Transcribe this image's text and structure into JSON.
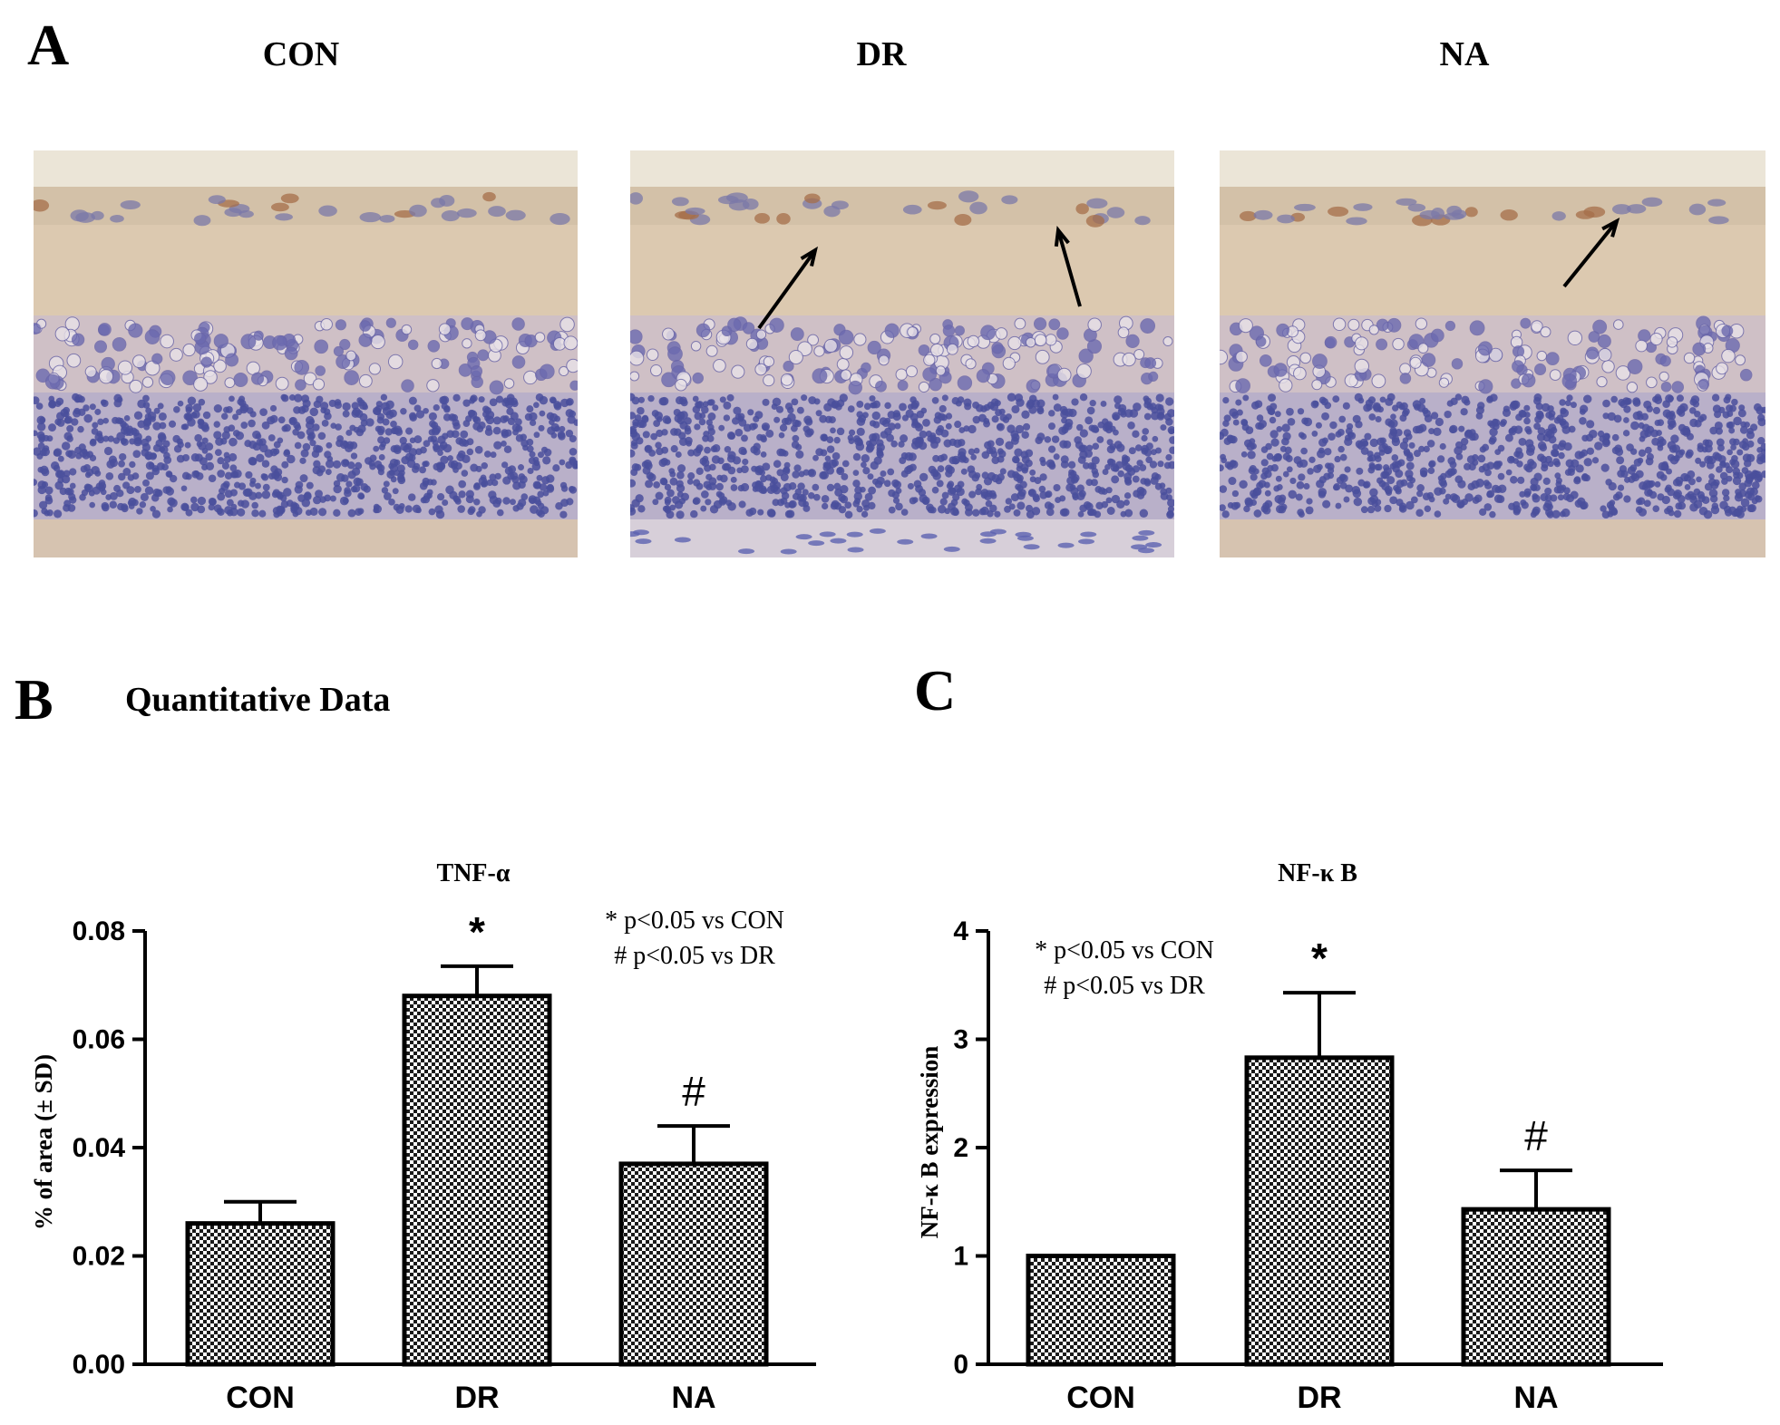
{
  "panel_a": {
    "letter": "A",
    "images": [
      {
        "label": "CON",
        "arrows": 0
      },
      {
        "label": "DR",
        "arrows": 2
      },
      {
        "label": "NA",
        "arrows": 1
      }
    ]
  },
  "panel_b": {
    "letter": "B",
    "title": "Quantitative Data"
  },
  "panel_c": {
    "letter": "C"
  },
  "colors": {
    "background": "#ffffff",
    "bar_stroke": "#000000",
    "bar_pattern_dark": "#1a1a1a",
    "tissue_base": "#dccbb2",
    "nuclei": "#4a4f9c"
  },
  "chart_data": [
    {
      "type": "bar",
      "title": "TNF-α",
      "ylabel": "% of area  (± SD)",
      "xlabel": "",
      "categories": [
        "CON",
        "DR",
        "NA"
      ],
      "values": [
        0.026,
        0.068,
        0.037
      ],
      "errors": [
        0.004,
        0.0055,
        0.007
      ],
      "marks": [
        "",
        "*",
        "#"
      ],
      "ylim": [
        0,
        0.08
      ],
      "yticks": [
        "0.00",
        "0.02",
        "0.04",
        "0.06",
        "0.08"
      ],
      "notes": [
        "* p<0.05 vs CON",
        "# p<0.05 vs DR"
      ],
      "grid": false
    },
    {
      "type": "bar",
      "title": "NF-κ B",
      "ylabel": "NF-κ B expression",
      "xlabel": "",
      "categories": [
        "CON",
        "DR",
        "NA"
      ],
      "values": [
        1.0,
        2.83,
        1.43
      ],
      "errors": [
        0.0,
        0.6,
        0.36
      ],
      "marks": [
        "",
        "*",
        "#"
      ],
      "ylim": [
        0,
        4
      ],
      "yticks": [
        "0",
        "1",
        "2",
        "3",
        "4"
      ],
      "notes": [
        "* p<0.05 vs CON",
        "# p<0.05 vs DR"
      ],
      "grid": false
    }
  ]
}
